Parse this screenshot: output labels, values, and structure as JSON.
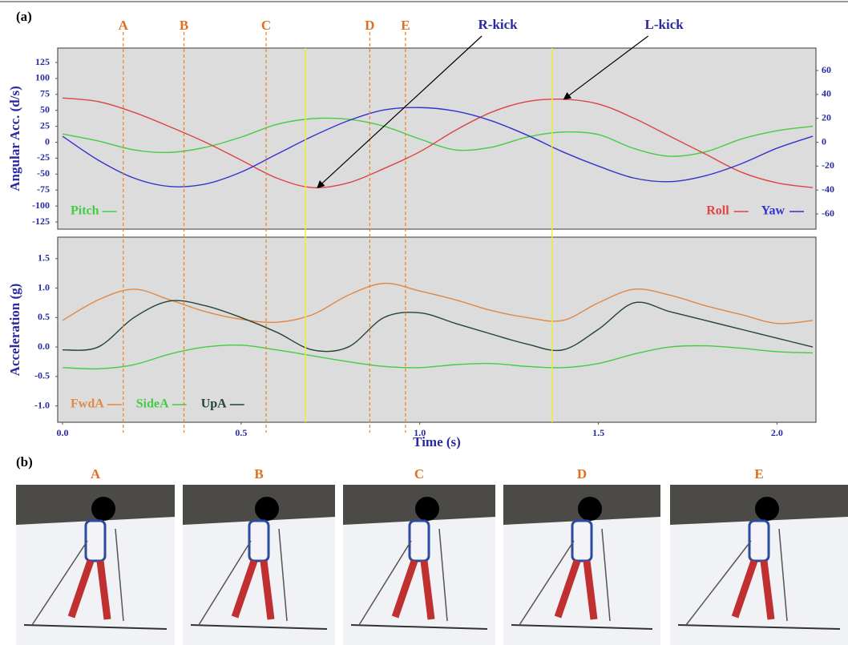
{
  "panels": {
    "a": "(a)",
    "b": "(b)"
  },
  "chart_data": [
    {
      "type": "line",
      "ylabel": "Angular Acc. (d/s)",
      "x": [
        0,
        0.1,
        0.2,
        0.3,
        0.4,
        0.5,
        0.6,
        0.7,
        0.8,
        0.9,
        1.0,
        1.1,
        1.2,
        1.3,
        1.4,
        1.5,
        1.6,
        1.7,
        1.8,
        1.9,
        2.0,
        2.1
      ],
      "xlim": [
        0,
        2.1
      ],
      "ylim": [
        -125,
        125
      ],
      "yticks": [
        125,
        100,
        75,
        50,
        25,
        0,
        -25,
        -50,
        -75,
        -100,
        -125
      ],
      "y2lim": [
        -60,
        60
      ],
      "y2ticks": [
        60,
        40,
        20,
        0,
        -20,
        -40,
        -60
      ],
      "series": [
        {
          "name": "Pitch",
          "color": "#44cc44",
          "values": [
            13,
            2,
            -12,
            -16,
            -8,
            8,
            28,
            37,
            36,
            25,
            5,
            -12,
            -8,
            8,
            16,
            12,
            -10,
            -22,
            -15,
            5,
            18,
            25
          ]
        },
        {
          "name": "Roll",
          "color": "#dd4444",
          "axis": "y2",
          "values": [
            37,
            34,
            25,
            13,
            0,
            -15,
            -30,
            -38,
            -34,
            -22,
            -8,
            10,
            25,
            34,
            36,
            32,
            20,
            5,
            -10,
            -25,
            -34,
            -38
          ]
        },
        {
          "name": "Yaw",
          "color": "#3333cc",
          "axis": "y2",
          "values": [
            5,
            -15,
            -30,
            -37,
            -35,
            -25,
            -10,
            5,
            18,
            27,
            29,
            26,
            18,
            6,
            -8,
            -20,
            -30,
            -33,
            -28,
            -18,
            -5,
            5
          ]
        }
      ],
      "markers": [
        {
          "label": "A",
          "x": 0.17
        },
        {
          "label": "B",
          "x": 0.34
        },
        {
          "label": "C",
          "x": 0.57
        },
        {
          "label": "D",
          "x": 0.86
        },
        {
          "label": "E",
          "x": 0.96
        }
      ],
      "annotations": [
        {
          "text": "R-kick",
          "x": 0.68,
          "y": -38
        },
        {
          "text": "L-kick",
          "x": 1.37,
          "y": 36
        }
      ]
    },
    {
      "type": "line",
      "xlabel": "Time (s)",
      "ylabel": "Acceleration (g)",
      "x": [
        0,
        0.1,
        0.2,
        0.3,
        0.4,
        0.5,
        0.6,
        0.7,
        0.8,
        0.9,
        1.0,
        1.1,
        1.2,
        1.3,
        1.4,
        1.5,
        1.6,
        1.7,
        1.8,
        1.9,
        2.0,
        2.1
      ],
      "xlim": [
        0,
        2.1
      ],
      "xticks": [
        {
          "value": 0,
          "label": "0.0"
        },
        0.5,
        {
          "value": 1,
          "label": "1.0"
        },
        1.5,
        {
          "value": 2,
          "label": "2.0"
        }
      ],
      "ylim": [
        -1.25,
        1.85
      ],
      "yticks": [
        1.5,
        {
          "value": 1,
          "label": "1.0"
        },
        0.5,
        {
          "value": 0,
          "label": "0.0"
        },
        -0.5,
        {
          "value": -1,
          "label": "-1.0"
        }
      ],
      "series": [
        {
          "name": "FwdA",
          "color": "#e08844",
          "values": [
            0.45,
            0.8,
            0.98,
            0.8,
            0.6,
            0.47,
            0.42,
            0.55,
            0.88,
            1.08,
            0.95,
            0.8,
            0.62,
            0.5,
            0.45,
            0.75,
            0.98,
            0.88,
            0.7,
            0.55,
            0.4,
            0.45
          ]
        },
        {
          "name": "SideA",
          "color": "#44cc44",
          "values": [
            -0.35,
            -0.37,
            -0.3,
            -0.12,
            0.0,
            0.03,
            -0.05,
            -0.15,
            -0.25,
            -0.33,
            -0.35,
            -0.3,
            -0.28,
            -0.33,
            -0.35,
            -0.28,
            -0.12,
            0.0,
            0.02,
            -0.02,
            -0.08,
            -0.1
          ]
        },
        {
          "name": "UpA",
          "color": "#224433",
          "values": [
            -0.05,
            0.0,
            0.5,
            0.78,
            0.7,
            0.5,
            0.25,
            -0.05,
            0.0,
            0.5,
            0.58,
            0.4,
            0.22,
            0.05,
            -0.05,
            0.3,
            0.75,
            0.6,
            0.45,
            0.3,
            0.15,
            0.0
          ]
        }
      ]
    }
  ],
  "photos": [
    "A",
    "B",
    "C",
    "D",
    "E"
  ]
}
